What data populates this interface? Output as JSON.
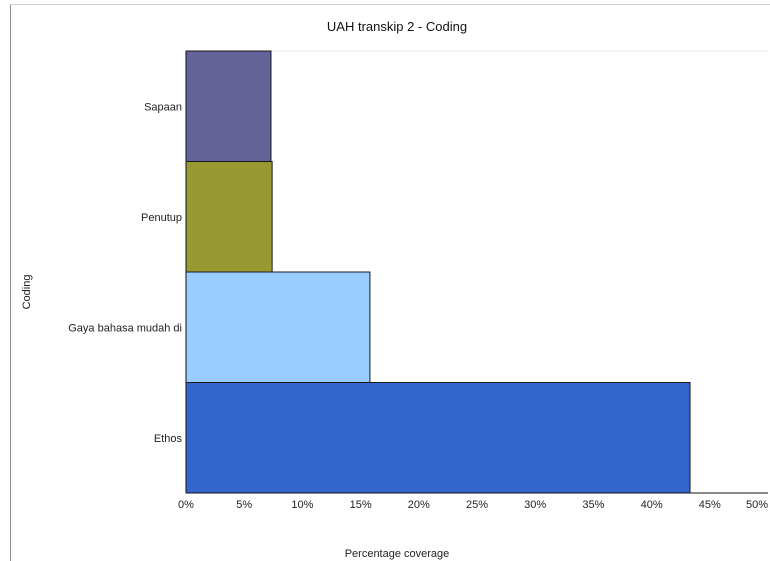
{
  "chart_data": {
    "type": "bar",
    "orientation": "horizontal",
    "title": "UAH transkip 2 - Coding",
    "xlabel": "Percentage coverage",
    "ylabel": "Coding",
    "categories": [
      "Sapaan",
      "Penutup",
      "Gaya bahasa mudah di",
      "Ethos"
    ],
    "values": [
      7.3,
      7.4,
      15.8,
      43.3
    ],
    "colors": [
      "#65649a",
      "#999933",
      "#99ccff",
      "#3366cc"
    ],
    "xlim": [
      0,
      50
    ],
    "xticks": [
      "0%",
      "5%",
      "10%",
      "15%",
      "20%",
      "25%",
      "30%",
      "35%",
      "40%",
      "45%",
      "50%"
    ],
    "grid": false,
    "legend": "none"
  }
}
